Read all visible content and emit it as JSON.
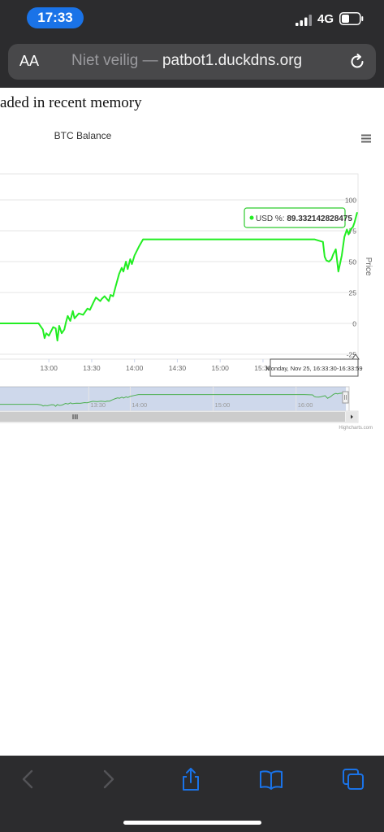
{
  "status_bar": {
    "time": "17:33",
    "network": "4G"
  },
  "address_bar": {
    "text_size_label": "AA",
    "security_label": "Niet veilig",
    "separator": " — ",
    "host": "patbot1.duckdns.org"
  },
  "page": {
    "heading": "aded in recent memory"
  },
  "chart_data": {
    "type": "line",
    "title": "BTC Balance",
    "ylabel": "Price",
    "ylim": [
      -25,
      100
    ],
    "yticks": [
      -25,
      0,
      25,
      50,
      75,
      100
    ],
    "x_unit": "hours of day (13.5 = 13:30)",
    "xlim": [
      12.42,
      16.6
    ],
    "xticks": [
      {
        "label": "13:00",
        "value": 13.0
      },
      {
        "label": "13:30",
        "value": 13.5
      },
      {
        "label": "14:00",
        "value": 14.0
      },
      {
        "label": "14:30",
        "value": 14.5
      },
      {
        "label": "15:00",
        "value": 15.0
      },
      {
        "label": "15:30",
        "value": 15.5
      }
    ],
    "grid": true,
    "color": "#22ee22",
    "series": [
      {
        "x": [
          12.42,
          12.55,
          12.75,
          12.88,
          12.93,
          12.95,
          12.97,
          13.0,
          13.05,
          13.08,
          13.1,
          13.12,
          13.15,
          13.18,
          13.2,
          13.22,
          13.25,
          13.28,
          13.3,
          13.35,
          13.4,
          13.45,
          13.48,
          13.52,
          13.55,
          13.6,
          13.62,
          13.65,
          13.7,
          13.72,
          13.75,
          13.78,
          13.8,
          13.82,
          13.85,
          13.87,
          13.9,
          13.92,
          13.95,
          13.97,
          14.0,
          14.05,
          14.1,
          14.2,
          14.5,
          15.0,
          15.5,
          15.8,
          16.1,
          16.2,
          16.22,
          16.24,
          16.27,
          16.3,
          16.32,
          16.35,
          16.38,
          16.42,
          16.45,
          16.48,
          16.5,
          16.52,
          16.55,
          16.57,
          16.6
        ],
        "y": [
          0,
          0,
          0,
          0,
          -5,
          -12,
          -8,
          -10,
          -3,
          -4,
          -14,
          -2,
          -8,
          -5,
          1,
          6,
          2,
          10,
          4,
          8,
          7,
          12,
          11,
          17,
          21,
          18,
          20,
          22,
          18,
          23,
          22,
          30,
          35,
          40,
          45,
          42,
          50,
          44,
          52,
          48,
          55,
          62,
          68,
          68,
          68,
          68,
          68,
          68,
          68,
          66,
          54,
          51,
          50,
          52,
          56,
          60,
          42,
          55,
          70,
          76,
          72,
          76,
          78,
          82,
          90
        ]
      }
    ],
    "tooltip": {
      "series_label": "USD %:",
      "value": "89.332142828475"
    },
    "crosshair_label": "Monday, Nov 25, 16:33:30-16:33:59",
    "menu_icon": "hamburger-icon",
    "navigator": {
      "ticks": [
        {
          "label": "13:30",
          "value": 13.5
        },
        {
          "label": "14:00",
          "value": 14.0
        },
        {
          "label": "15:00",
          "value": 15.0
        },
        {
          "label": "16:00",
          "value": 16.0
        }
      ],
      "selected_start": 12.42,
      "selected_end": 16.6
    },
    "credits": "Highcharts.com"
  },
  "toolbar": {
    "icons": [
      "chevron-left-icon",
      "chevron-right-icon",
      "share-icon",
      "bookmarks-icon",
      "tabs-icon"
    ]
  }
}
